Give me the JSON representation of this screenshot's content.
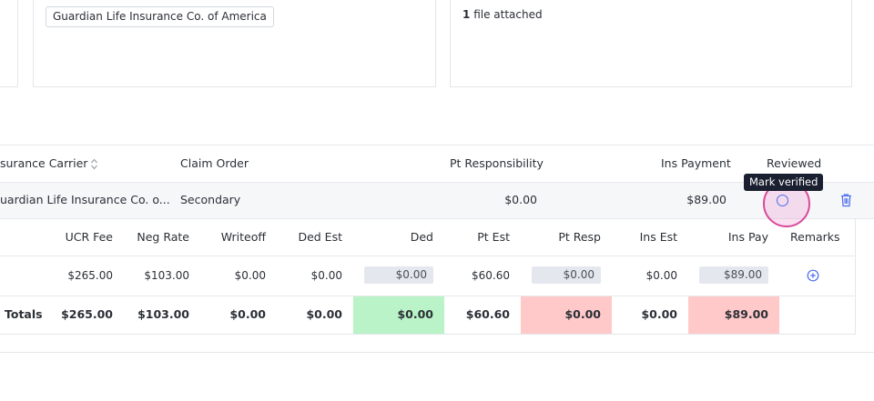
{
  "cards": {
    "carrier_chip": "Guardian Life Insurance Co. of America",
    "files_count": "1",
    "files_label": "file attached"
  },
  "claims_table": {
    "headers": {
      "carrier": "surance Carrier",
      "claim_order": "Claim Order",
      "pt_responsibility": "Pt Responsibility",
      "ins_payment": "Ins Payment",
      "reviewed": "Reviewed"
    },
    "row": {
      "carrier": "uardian Life Insurance Co. o...",
      "claim_order": "Secondary",
      "pt_responsibility": "$0.00",
      "ins_payment": "$89.00"
    },
    "tooltip": "Mark verified"
  },
  "procedure_table": {
    "headers": {
      "ucr_fee": "UCR Fee",
      "neg_rate": "Neg Rate",
      "writeoff": "Writeoff",
      "ded_est": "Ded Est",
      "ded": "Ded",
      "pt_est": "Pt Est",
      "pt_resp": "Pt Resp",
      "ins_est": "Ins Est",
      "ins_pay": "Ins Pay",
      "remarks": "Remarks"
    },
    "row": {
      "ucr_fee": "$265.00",
      "neg_rate": "$103.00",
      "writeoff": "$0.00",
      "ded_est": "$0.00",
      "ded": "$0.00",
      "pt_est": "$60.60",
      "pt_resp": "$0.00",
      "ins_est": "$0.00",
      "ins_pay": "$89.00"
    },
    "totals": {
      "label": "Totals",
      "ucr_fee": "$265.00",
      "neg_rate": "$103.00",
      "writeoff": "$0.00",
      "ded_est": "$0.00",
      "ded": "$0.00",
      "pt_est": "$60.60",
      "pt_resp": "$0.00",
      "ins_est": "$0.00",
      "ins_pay": "$89.00"
    }
  },
  "colors": {
    "accent": "#4a6cf0",
    "ded_total_bg": "#b9f3c7",
    "mismatch_bg": "#ffc9c9",
    "tooltip_bg": "#1b2030"
  },
  "icons": [
    "sort-icon",
    "verify-circle-icon",
    "trash-icon",
    "add-remark-icon"
  ]
}
